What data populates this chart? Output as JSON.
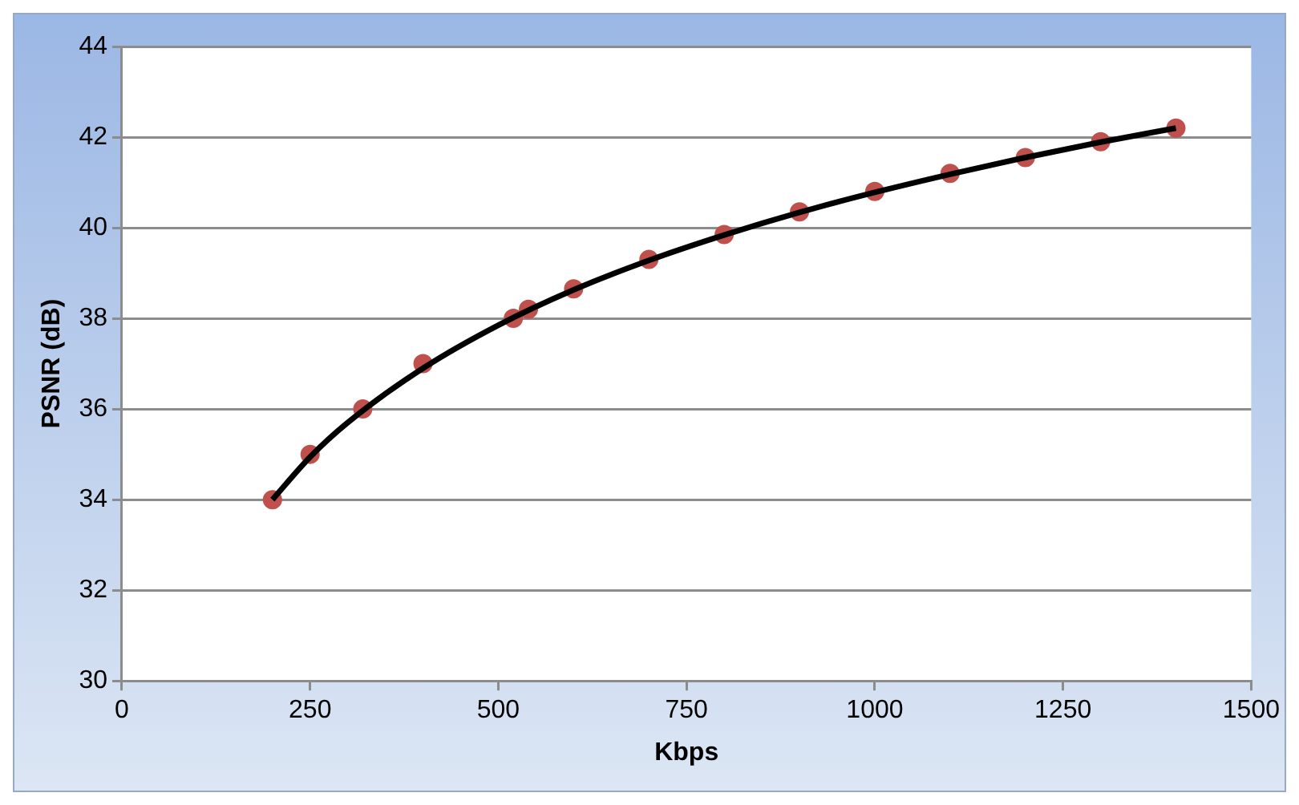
{
  "chart_data": {
    "type": "scatter",
    "xlabel": "Kbps",
    "ylabel": "PSNR (dB)",
    "xlim": [
      0,
      1500
    ],
    "xticks": [
      0,
      250,
      500,
      750,
      1000,
      1250,
      1500
    ],
    "ylim": [
      30,
      44
    ],
    "yticks": [
      30,
      32,
      34,
      36,
      38,
      40,
      42,
      44
    ],
    "grid": "y",
    "legend": false,
    "marker": "circle",
    "series": [
      {
        "type": "scatter",
        "color": "#c0504d",
        "x": [
          200,
          250,
          320,
          400,
          520,
          540,
          600,
          700,
          800,
          900,
          1000,
          1100,
          1200,
          1300,
          1400
        ],
        "values": [
          34,
          35,
          36,
          37,
          38,
          38.2,
          38.65,
          39.3,
          39.85,
          40.35,
          40.8,
          41.2,
          41.55,
          41.9,
          42.2
        ]
      },
      {
        "type": "line",
        "color": "#000000",
        "line_style": "solid",
        "marker": "none",
        "x": [
          200,
          250,
          300,
          400,
          500,
          600,
          700,
          800,
          900,
          1000,
          1100,
          1200,
          1300,
          1400
        ],
        "values": [
          34,
          34.94,
          35.7,
          36.9,
          37.85,
          38.63,
          39.28,
          39.84,
          40.34,
          40.78,
          41.18,
          41.55,
          41.89,
          42.2
        ]
      }
    ]
  }
}
